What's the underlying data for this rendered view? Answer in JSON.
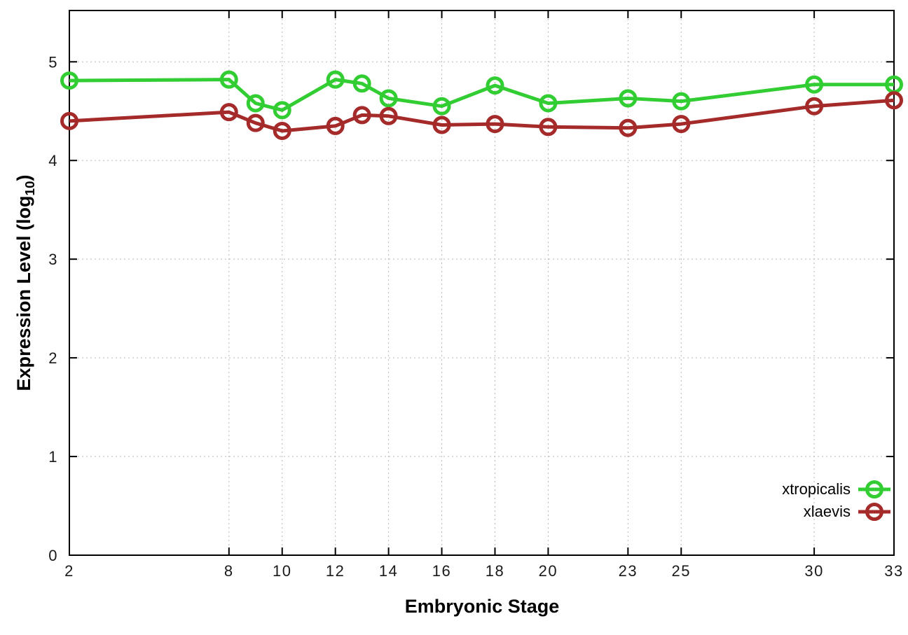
{
  "figure": {
    "xlabel": "Embryonic Stage",
    "ylabel_prefix": "Expression Level (log",
    "ylabel_sub": "10",
    "ylabel_suffix": ")",
    "background": "#ffffff",
    "border_color": "#000000",
    "grid_color": "#b8b8b8",
    "tick_label_color": "#1a1a1a"
  },
  "chart_data": {
    "type": "line",
    "title": "",
    "xlabel": "Embryonic Stage",
    "ylabel": "Expression Level (log10)",
    "x": [
      2,
      8,
      9,
      10,
      12,
      13,
      14,
      16,
      18,
      20,
      23,
      25,
      30,
      33
    ],
    "x_ticks": [
      2,
      8,
      10,
      12,
      14,
      16,
      18,
      20,
      23,
      25,
      30,
      33
    ],
    "y_ticks": [
      0,
      1,
      2,
      3,
      4,
      5
    ],
    "xlim": [
      2,
      33
    ],
    "ylim": [
      0,
      5.52
    ],
    "grid": true,
    "marker": "open-circle",
    "legend_position": "inside-lower-right",
    "series": [
      {
        "name": "xtropicalis",
        "color": "#32CD32",
        "values": [
          4.81,
          4.82,
          4.58,
          4.51,
          4.82,
          4.78,
          4.63,
          4.55,
          4.76,
          4.58,
          4.63,
          4.6,
          4.77,
          4.77
        ]
      },
      {
        "name": "xlaevis",
        "color": "#A52A2A",
        "values": [
          4.4,
          4.49,
          4.38,
          4.3,
          4.35,
          4.46,
          4.45,
          4.36,
          4.37,
          4.34,
          4.33,
          4.37,
          4.55,
          4.61
        ]
      }
    ]
  }
}
